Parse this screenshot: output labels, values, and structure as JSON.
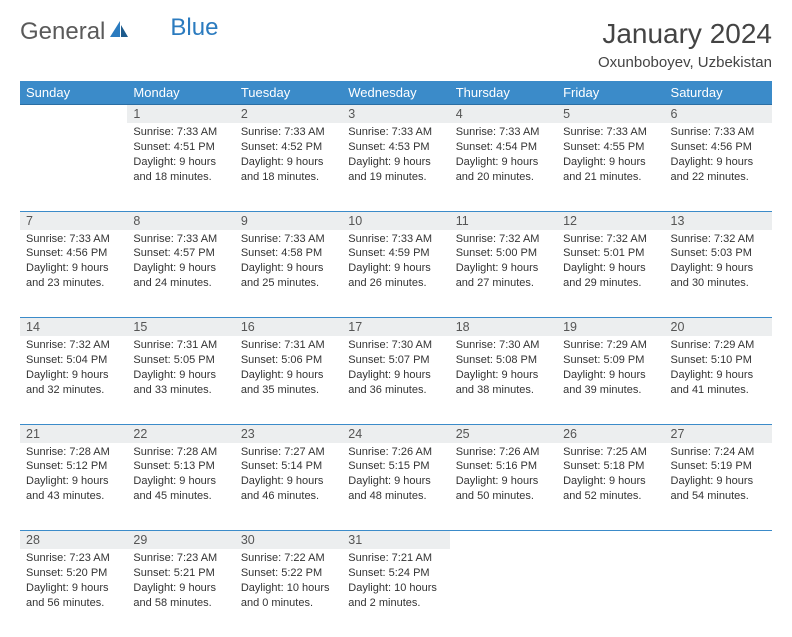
{
  "brand": {
    "part1": "General",
    "part2": "Blue"
  },
  "title": "January 2024",
  "location": "Oxunboboyev, Uzbekistan",
  "colors": {
    "header_bg": "#3b8bc9",
    "header_text": "#ffffff",
    "daynum_bg": "#eceeef",
    "border": "#3b8bc9",
    "brand_gray": "#5a5a5a",
    "brand_blue": "#2b7bbf"
  },
  "weekdays": [
    "Sunday",
    "Monday",
    "Tuesday",
    "Wednesday",
    "Thursday",
    "Friday",
    "Saturday"
  ],
  "weeks": [
    {
      "days": [
        {
          "num": "",
          "sunrise": "",
          "sunset": "",
          "daylight": ""
        },
        {
          "num": "1",
          "sunrise": "Sunrise: 7:33 AM",
          "sunset": "Sunset: 4:51 PM",
          "daylight": "Daylight: 9 hours and 18 minutes."
        },
        {
          "num": "2",
          "sunrise": "Sunrise: 7:33 AM",
          "sunset": "Sunset: 4:52 PM",
          "daylight": "Daylight: 9 hours and 18 minutes."
        },
        {
          "num": "3",
          "sunrise": "Sunrise: 7:33 AM",
          "sunset": "Sunset: 4:53 PM",
          "daylight": "Daylight: 9 hours and 19 minutes."
        },
        {
          "num": "4",
          "sunrise": "Sunrise: 7:33 AM",
          "sunset": "Sunset: 4:54 PM",
          "daylight": "Daylight: 9 hours and 20 minutes."
        },
        {
          "num": "5",
          "sunrise": "Sunrise: 7:33 AM",
          "sunset": "Sunset: 4:55 PM",
          "daylight": "Daylight: 9 hours and 21 minutes."
        },
        {
          "num": "6",
          "sunrise": "Sunrise: 7:33 AM",
          "sunset": "Sunset: 4:56 PM",
          "daylight": "Daylight: 9 hours and 22 minutes."
        }
      ]
    },
    {
      "days": [
        {
          "num": "7",
          "sunrise": "Sunrise: 7:33 AM",
          "sunset": "Sunset: 4:56 PM",
          "daylight": "Daylight: 9 hours and 23 minutes."
        },
        {
          "num": "8",
          "sunrise": "Sunrise: 7:33 AM",
          "sunset": "Sunset: 4:57 PM",
          "daylight": "Daylight: 9 hours and 24 minutes."
        },
        {
          "num": "9",
          "sunrise": "Sunrise: 7:33 AM",
          "sunset": "Sunset: 4:58 PM",
          "daylight": "Daylight: 9 hours and 25 minutes."
        },
        {
          "num": "10",
          "sunrise": "Sunrise: 7:33 AM",
          "sunset": "Sunset: 4:59 PM",
          "daylight": "Daylight: 9 hours and 26 minutes."
        },
        {
          "num": "11",
          "sunrise": "Sunrise: 7:32 AM",
          "sunset": "Sunset: 5:00 PM",
          "daylight": "Daylight: 9 hours and 27 minutes."
        },
        {
          "num": "12",
          "sunrise": "Sunrise: 7:32 AM",
          "sunset": "Sunset: 5:01 PM",
          "daylight": "Daylight: 9 hours and 29 minutes."
        },
        {
          "num": "13",
          "sunrise": "Sunrise: 7:32 AM",
          "sunset": "Sunset: 5:03 PM",
          "daylight": "Daylight: 9 hours and 30 minutes."
        }
      ]
    },
    {
      "days": [
        {
          "num": "14",
          "sunrise": "Sunrise: 7:32 AM",
          "sunset": "Sunset: 5:04 PM",
          "daylight": "Daylight: 9 hours and 32 minutes."
        },
        {
          "num": "15",
          "sunrise": "Sunrise: 7:31 AM",
          "sunset": "Sunset: 5:05 PM",
          "daylight": "Daylight: 9 hours and 33 minutes."
        },
        {
          "num": "16",
          "sunrise": "Sunrise: 7:31 AM",
          "sunset": "Sunset: 5:06 PM",
          "daylight": "Daylight: 9 hours and 35 minutes."
        },
        {
          "num": "17",
          "sunrise": "Sunrise: 7:30 AM",
          "sunset": "Sunset: 5:07 PM",
          "daylight": "Daylight: 9 hours and 36 minutes."
        },
        {
          "num": "18",
          "sunrise": "Sunrise: 7:30 AM",
          "sunset": "Sunset: 5:08 PM",
          "daylight": "Daylight: 9 hours and 38 minutes."
        },
        {
          "num": "19",
          "sunrise": "Sunrise: 7:29 AM",
          "sunset": "Sunset: 5:09 PM",
          "daylight": "Daylight: 9 hours and 39 minutes."
        },
        {
          "num": "20",
          "sunrise": "Sunrise: 7:29 AM",
          "sunset": "Sunset: 5:10 PM",
          "daylight": "Daylight: 9 hours and 41 minutes."
        }
      ]
    },
    {
      "days": [
        {
          "num": "21",
          "sunrise": "Sunrise: 7:28 AM",
          "sunset": "Sunset: 5:12 PM",
          "daylight": "Daylight: 9 hours and 43 minutes."
        },
        {
          "num": "22",
          "sunrise": "Sunrise: 7:28 AM",
          "sunset": "Sunset: 5:13 PM",
          "daylight": "Daylight: 9 hours and 45 minutes."
        },
        {
          "num": "23",
          "sunrise": "Sunrise: 7:27 AM",
          "sunset": "Sunset: 5:14 PM",
          "daylight": "Daylight: 9 hours and 46 minutes."
        },
        {
          "num": "24",
          "sunrise": "Sunrise: 7:26 AM",
          "sunset": "Sunset: 5:15 PM",
          "daylight": "Daylight: 9 hours and 48 minutes."
        },
        {
          "num": "25",
          "sunrise": "Sunrise: 7:26 AM",
          "sunset": "Sunset: 5:16 PM",
          "daylight": "Daylight: 9 hours and 50 minutes."
        },
        {
          "num": "26",
          "sunrise": "Sunrise: 7:25 AM",
          "sunset": "Sunset: 5:18 PM",
          "daylight": "Daylight: 9 hours and 52 minutes."
        },
        {
          "num": "27",
          "sunrise": "Sunrise: 7:24 AM",
          "sunset": "Sunset: 5:19 PM",
          "daylight": "Daylight: 9 hours and 54 minutes."
        }
      ]
    },
    {
      "days": [
        {
          "num": "28",
          "sunrise": "Sunrise: 7:23 AM",
          "sunset": "Sunset: 5:20 PM",
          "daylight": "Daylight: 9 hours and 56 minutes."
        },
        {
          "num": "29",
          "sunrise": "Sunrise: 7:23 AM",
          "sunset": "Sunset: 5:21 PM",
          "daylight": "Daylight: 9 hours and 58 minutes."
        },
        {
          "num": "30",
          "sunrise": "Sunrise: 7:22 AM",
          "sunset": "Sunset: 5:22 PM",
          "daylight": "Daylight: 10 hours and 0 minutes."
        },
        {
          "num": "31",
          "sunrise": "Sunrise: 7:21 AM",
          "sunset": "Sunset: 5:24 PM",
          "daylight": "Daylight: 10 hours and 2 minutes."
        },
        {
          "num": "",
          "sunrise": "",
          "sunset": "",
          "daylight": ""
        },
        {
          "num": "",
          "sunrise": "",
          "sunset": "",
          "daylight": ""
        },
        {
          "num": "",
          "sunrise": "",
          "sunset": "",
          "daylight": ""
        }
      ]
    }
  ]
}
